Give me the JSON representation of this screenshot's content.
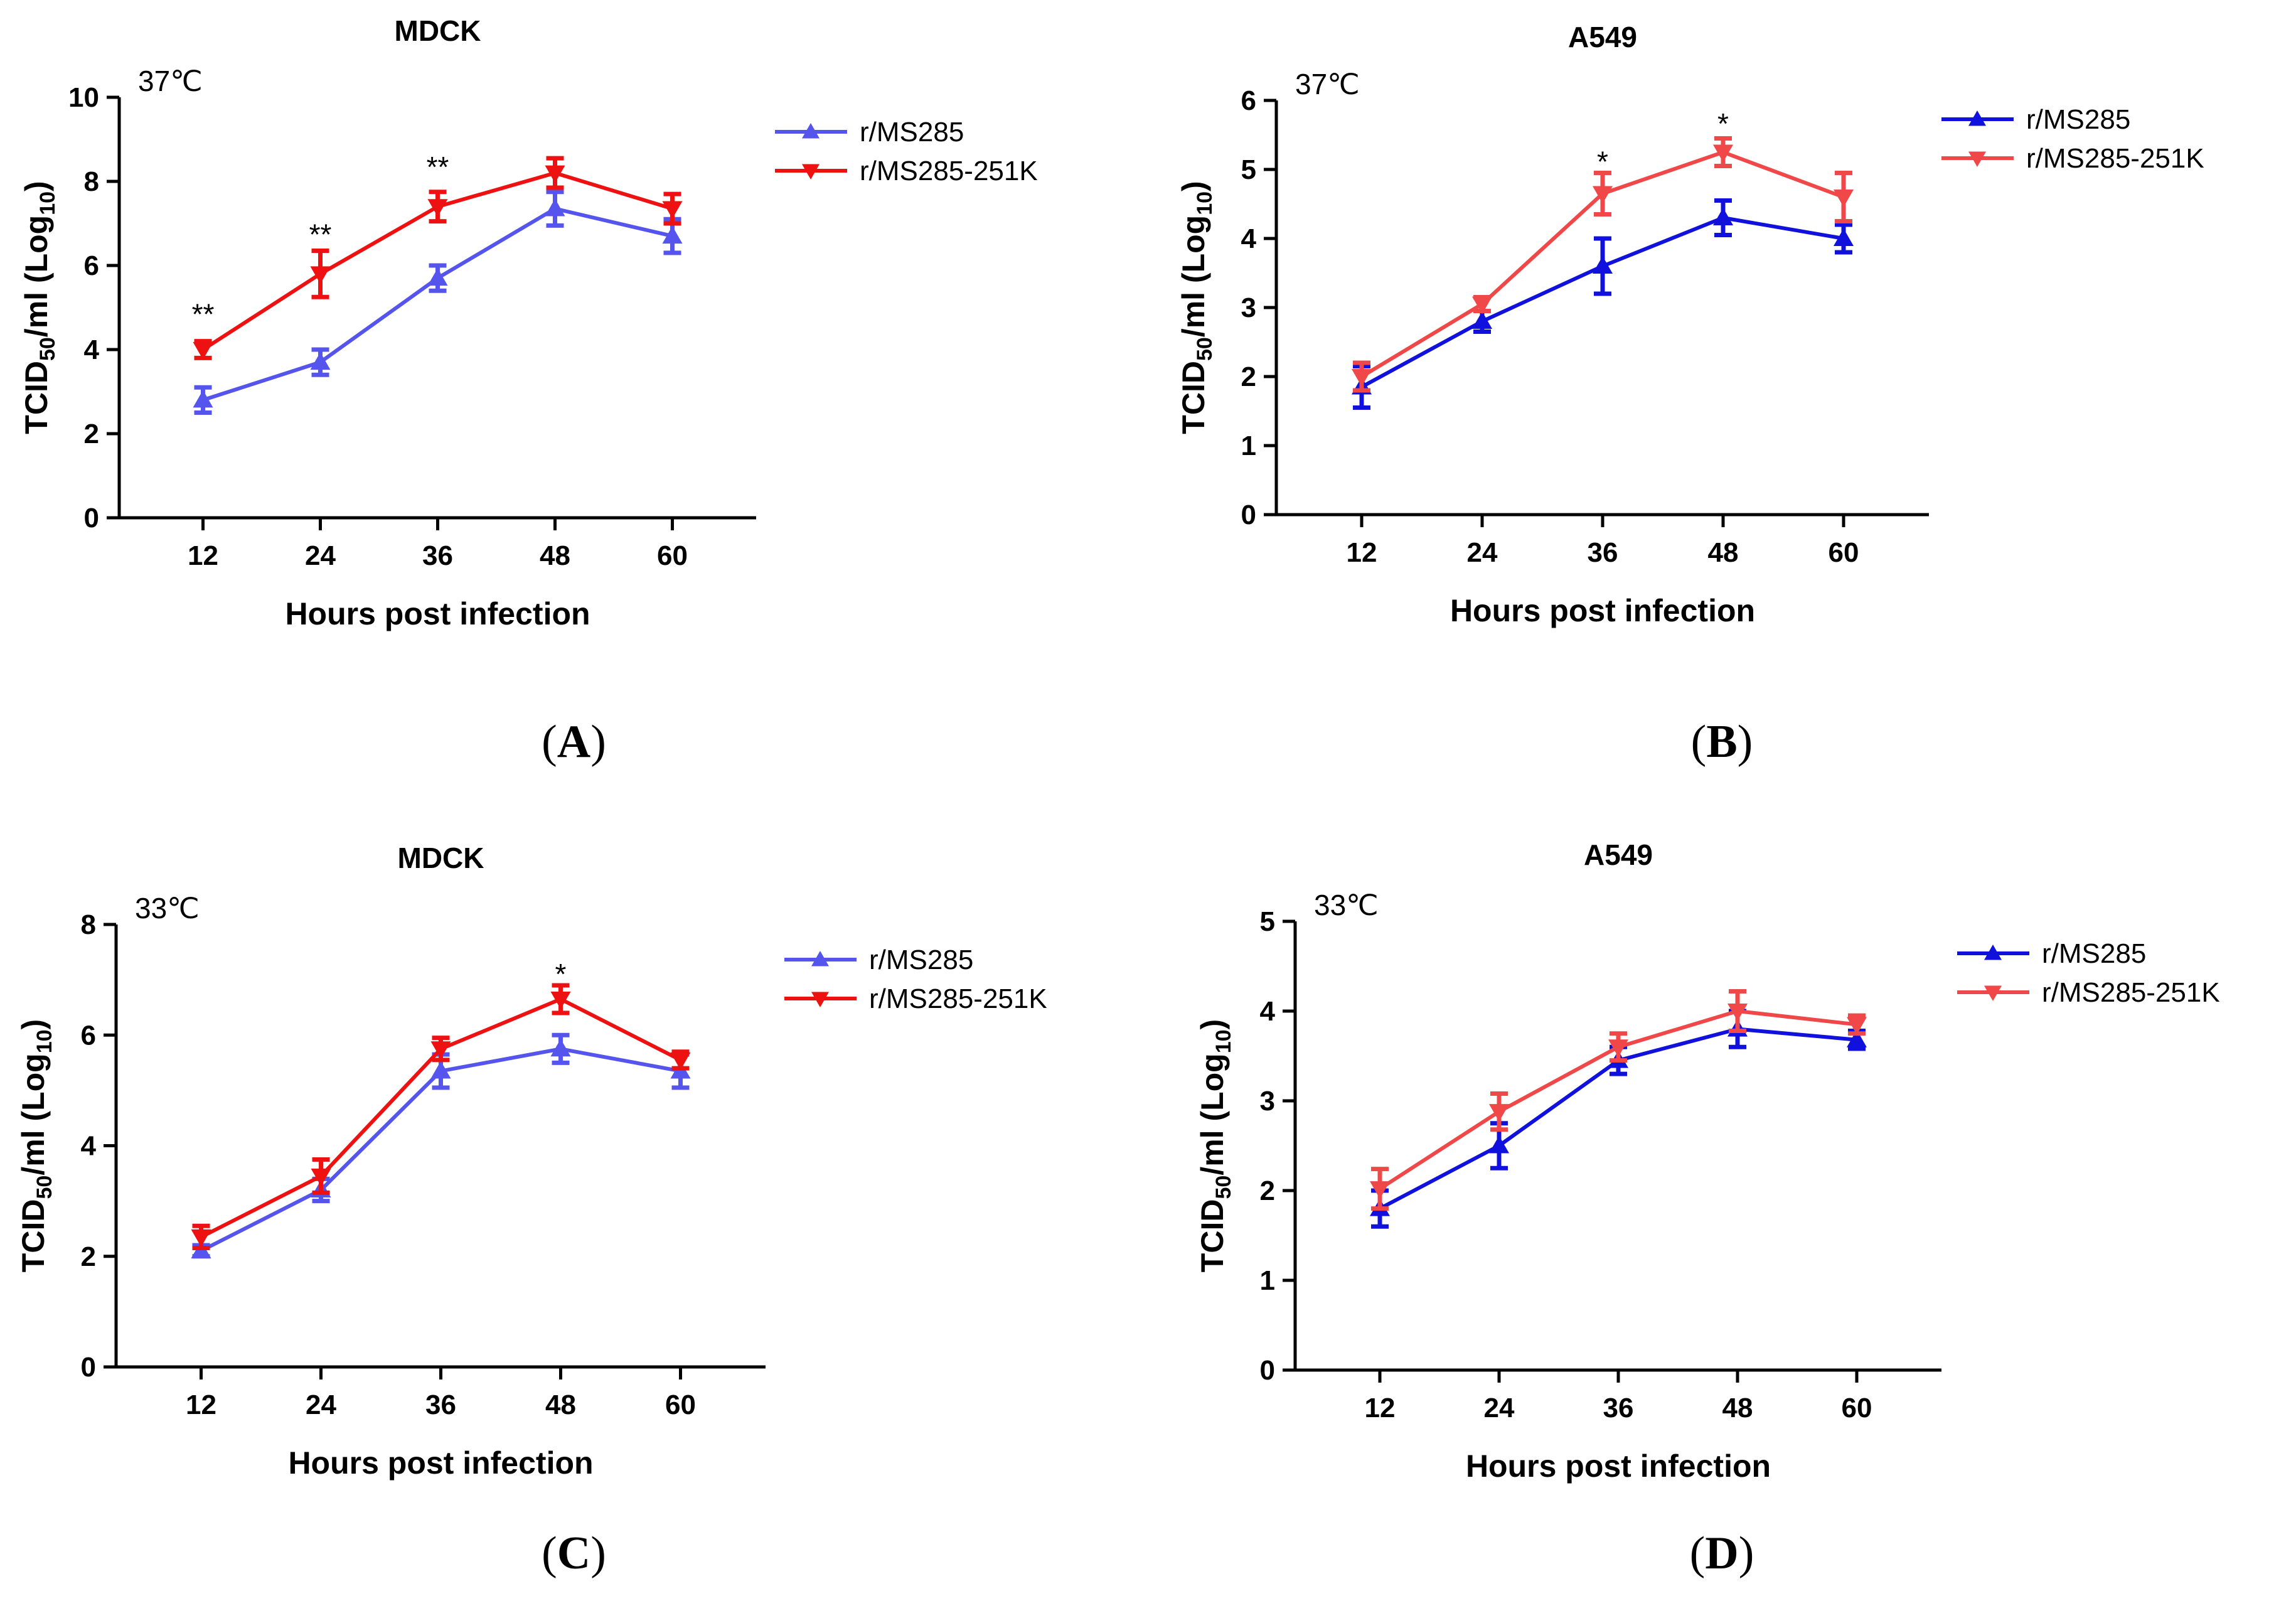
{
  "chart_data": [
    {
      "panel": "A",
      "type": "line",
      "title": "MDCK",
      "temperature": "37℃",
      "xlabel": "Hours post infection",
      "ylabel_parts": [
        "TCID",
        "50",
        "/ml (Log",
        "10",
        ")"
      ],
      "ylim": [
        0,
        10
      ],
      "yticks": [
        0,
        2,
        4,
        6,
        8,
        10
      ],
      "categories": [
        "12",
        "24",
        "36",
        "48",
        "60"
      ],
      "series": [
        {
          "name": "r/MS285",
          "color": "#5555ee",
          "marker": "triangle-up",
          "values": [
            2.8,
            3.7,
            5.7,
            7.35,
            6.7
          ],
          "errors": [
            0.3,
            0.3,
            0.3,
            0.4,
            0.4
          ]
        },
        {
          "name": "r/MS285-251K",
          "color": "#ee1111",
          "marker": "triangle-down",
          "values": [
            4.0,
            5.8,
            7.4,
            8.2,
            7.35
          ],
          "errors": [
            0.2,
            0.55,
            0.35,
            0.35,
            0.35
          ]
        }
      ],
      "significance": [
        {
          "category": "12",
          "label": "**",
          "y": 4.9
        },
        {
          "category": "24",
          "label": "**",
          "y": 6.8
        },
        {
          "category": "36",
          "label": "**",
          "y": 8.4
        }
      ],
      "panel_label": "A"
    },
    {
      "panel": "B",
      "type": "line",
      "title": "A549",
      "temperature": "37℃",
      "xlabel": "Hours post infection",
      "ylabel_parts": [
        "TCID",
        "50",
        "/ml (Log",
        "10",
        ")"
      ],
      "ylim": [
        0,
        6
      ],
      "yticks": [
        0,
        1,
        2,
        3,
        4,
        5,
        6
      ],
      "categories": [
        "12",
        "24",
        "36",
        "48",
        "60"
      ],
      "series": [
        {
          "name": "r/MS285",
          "color": "#1111dd",
          "marker": "triangle-up",
          "values": [
            1.85,
            2.8,
            3.6,
            4.3,
            4.0
          ],
          "errors": [
            0.3,
            0.15,
            0.4,
            0.25,
            0.2
          ]
        },
        {
          "name": "r/MS285-251K",
          "color": "#f04848",
          "marker": "triangle-down",
          "values": [
            2.0,
            3.05,
            4.65,
            5.25,
            4.6
          ],
          "errors": [
            0.2,
            0.1,
            0.3,
            0.2,
            0.35
          ]
        }
      ],
      "significance": [
        {
          "category": "36",
          "label": "*",
          "y": 5.15
        },
        {
          "category": "48",
          "label": "*",
          "y": 5.7
        }
      ],
      "panel_label": "B"
    },
    {
      "panel": "C",
      "type": "line",
      "title": "MDCK",
      "temperature": "33℃",
      "xlabel": "Hours post infection",
      "ylabel_parts": [
        "TCID",
        "50",
        "/ml (Log",
        "10",
        ")"
      ],
      "ylim": [
        0,
        8
      ],
      "yticks": [
        0,
        2,
        4,
        6,
        8
      ],
      "categories": [
        "12",
        "24",
        "36",
        "48",
        "60"
      ],
      "series": [
        {
          "name": "r/MS285",
          "color": "#5555ee",
          "marker": "triangle-up",
          "values": [
            2.1,
            3.2,
            5.35,
            5.75,
            5.35
          ],
          "errors": [
            0.1,
            0.2,
            0.3,
            0.25,
            0.3
          ]
        },
        {
          "name": "r/MS285-251K",
          "color": "#ee1111",
          "marker": "triangle-down",
          "values": [
            2.35,
            3.45,
            5.75,
            6.65,
            5.55
          ],
          "errors": [
            0.2,
            0.3,
            0.2,
            0.25,
            0.15
          ]
        }
      ],
      "significance": [
        {
          "category": "48",
          "label": "*",
          "y": 7.15
        }
      ],
      "panel_label": "C"
    },
    {
      "panel": "D",
      "type": "line",
      "title": "A549",
      "temperature": "33℃",
      "xlabel": "Hours post infection",
      "ylabel_parts": [
        "TCID",
        "50",
        "/ml (Log",
        "10",
        ")"
      ],
      "ylim": [
        0,
        5
      ],
      "yticks": [
        0,
        1,
        2,
        3,
        4,
        5
      ],
      "categories": [
        "12",
        "24",
        "36",
        "48",
        "60"
      ],
      "series": [
        {
          "name": "r/MS285",
          "color": "#1111dd",
          "marker": "triangle-up",
          "values": [
            1.8,
            2.5,
            3.45,
            3.8,
            3.68
          ],
          "errors": [
            0.2,
            0.25,
            0.15,
            0.2,
            0.1
          ]
        },
        {
          "name": "r/MS285-251K",
          "color": "#f04848",
          "marker": "triangle-down",
          "values": [
            2.02,
            2.88,
            3.6,
            4.0,
            3.85
          ],
          "errors": [
            0.22,
            0.2,
            0.15,
            0.22,
            0.1
          ]
        }
      ],
      "significance": [],
      "panel_label": "D"
    }
  ]
}
